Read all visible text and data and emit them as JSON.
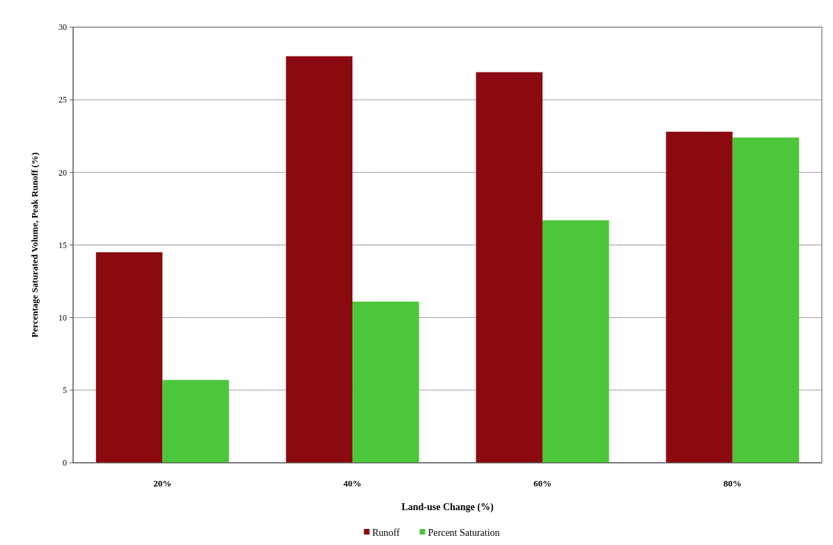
{
  "chart_data": {
    "type": "bar",
    "xlabel": "Land-use Change (%)",
    "ylabel": "Percentage Saturated Volume, Peak Runoff (%)",
    "categories": [
      "20%",
      "40%",
      "60%",
      "80%"
    ],
    "series": [
      {
        "name": "Runoff",
        "color": "#8b0a0f",
        "values": [
          14.5,
          28.0,
          26.9,
          22.8
        ]
      },
      {
        "name": "Percent Saturation",
        "color": "#4cc63a",
        "values": [
          5.7,
          11.1,
          16.7,
          22.4
        ]
      }
    ],
    "ylim": [
      0,
      30
    ],
    "yticks": [
      0,
      5,
      10,
      15,
      20,
      25,
      30
    ],
    "grid": "y",
    "legend": "bottom"
  }
}
